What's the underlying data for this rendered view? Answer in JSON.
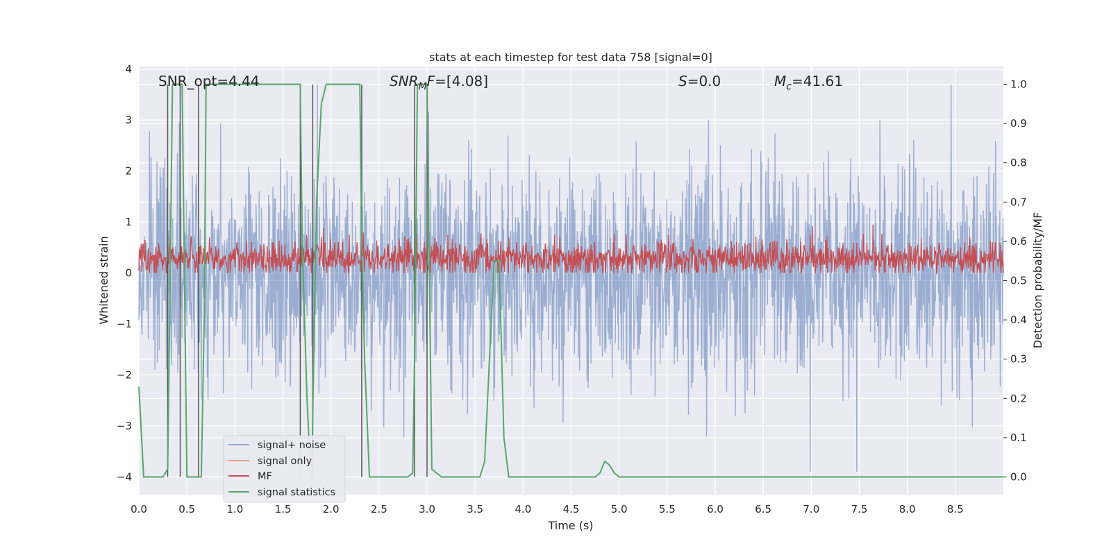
{
  "chart_data": {
    "type": "line",
    "title": "stats at each timestep for test data 758 [signal=0]",
    "xlabel": "Time (s)",
    "ylabel": "Whitened strain",
    "y2label": "Detection probability/MF",
    "xlim": [
      0.0,
      9.0
    ],
    "ylim": [
      -4.35,
      4.05
    ],
    "y2lim": [
      -0.045,
      1.045
    ],
    "xticks": [
      0.0,
      0.5,
      1.0,
      1.5,
      2.0,
      2.5,
      3.0,
      3.5,
      4.0,
      4.5,
      5.0,
      5.5,
      6.0,
      6.5,
      7.0,
      7.5,
      8.0,
      8.5
    ],
    "xtick_labels": [
      "0.0",
      "0.5",
      "1.0",
      "1.5",
      "2.0",
      "2.5",
      "3.0",
      "3.5",
      "4.0",
      "4.5",
      "5.0",
      "5.5",
      "6.0",
      "6.5",
      "7.0",
      "7.5",
      "8.0",
      "8.5"
    ],
    "yticks": [
      4,
      3,
      2,
      1,
      0,
      -1,
      -2,
      -3,
      -4
    ],
    "ytick_labels": [
      "4",
      "3",
      "2",
      "1",
      "0",
      "−1",
      "−2",
      "−3",
      "−4"
    ],
    "y2ticks": [
      1.0,
      0.9,
      0.8,
      0.7,
      0.6,
      0.5,
      0.4,
      0.3,
      0.2,
      0.1,
      0.0
    ],
    "y2tick_labels": [
      "1.0",
      "0.9",
      "0.8",
      "0.7",
      "0.6",
      "0.5",
      "0.4",
      "0.3",
      "0.2",
      "0.1",
      "0.0"
    ],
    "grid": true,
    "legend_position": "lower-left",
    "annotations": [
      {
        "text": "SNR_opt=4.44"
      },
      {
        "text": "SNR_MF=[4.08]"
      },
      {
        "text": "S=0.0"
      },
      {
        "text": "M_c=41.61"
      }
    ],
    "series": [
      {
        "name": "signal+ noise",
        "color": "#4c72b0",
        "axis": "left",
        "description": "dense whitened noise, amplitude mostly within ±2, peaks to ±3.7"
      },
      {
        "name": "signal only",
        "color": "#dd8452",
        "axis": "left",
        "values": []
      },
      {
        "name": "MF",
        "color": "#c44e52",
        "axis": "left",
        "description": "matched-filter output oscillating between about 0 and 0.6, peaks near 0.95"
      },
      {
        "name": "signal statistics",
        "color": "#55a868",
        "axis": "right",
        "x": [
          0.0,
          0.05,
          0.1,
          0.2,
          0.25,
          0.3,
          0.32,
          0.35,
          0.38,
          0.42,
          0.45,
          0.5,
          0.55,
          0.6,
          0.65,
          0.68,
          0.7,
          0.72,
          0.75,
          0.8,
          0.85,
          0.9,
          1.0,
          1.2,
          1.5,
          1.68,
          1.7,
          1.75,
          1.78,
          1.8,
          1.82,
          1.85,
          1.9,
          1.95,
          2.0,
          2.1,
          2.2,
          2.3,
          2.32,
          2.35,
          2.4,
          2.45,
          2.5,
          2.55,
          2.6,
          2.7,
          2.8,
          2.85,
          2.87,
          2.9,
          2.95,
          3.0,
          3.02,
          3.05,
          3.1,
          3.15,
          3.2,
          3.3,
          3.4,
          3.5,
          3.55,
          3.6,
          3.65,
          3.7,
          3.75,
          3.8,
          3.85,
          3.9,
          4.0,
          4.5,
          4.75,
          4.8,
          4.85,
          4.9,
          4.95,
          5.0,
          5.5,
          6.0,
          7.0,
          8.0,
          9.0
        ],
        "y": [
          0.23,
          0.0,
          0.0,
          0.0,
          0.0,
          0.02,
          0.4,
          1.0,
          1.0,
          1.0,
          1.0,
          0.0,
          0.0,
          0.0,
          0.0,
          0.4,
          1.0,
          1.0,
          1.0,
          1.0,
          1.0,
          1.0,
          1.0,
          1.0,
          1.0,
          1.0,
          0.6,
          0.2,
          0.05,
          0.0,
          0.3,
          0.7,
          0.95,
          1.0,
          1.0,
          1.0,
          1.0,
          1.0,
          0.6,
          0.3,
          0.0,
          0.0,
          0.0,
          0.0,
          0.0,
          0.0,
          0.0,
          0.01,
          0.3,
          1.0,
          1.0,
          1.0,
          0.6,
          0.02,
          0.01,
          0.0,
          0.0,
          0.0,
          0.0,
          0.0,
          0.0,
          0.04,
          0.3,
          0.55,
          0.55,
          0.1,
          0.0,
          0.0,
          0.0,
          0.0,
          0.0,
          0.01,
          0.04,
          0.03,
          0.01,
          0.0,
          0.0,
          0.0,
          0.0,
          0.0,
          0.0
        ]
      }
    ],
    "vertical_markers": {
      "color": "#555555",
      "x": [
        0.3,
        0.43,
        0.62,
        1.68,
        1.81,
        2.32,
        2.87,
        3.0
      ]
    }
  }
}
